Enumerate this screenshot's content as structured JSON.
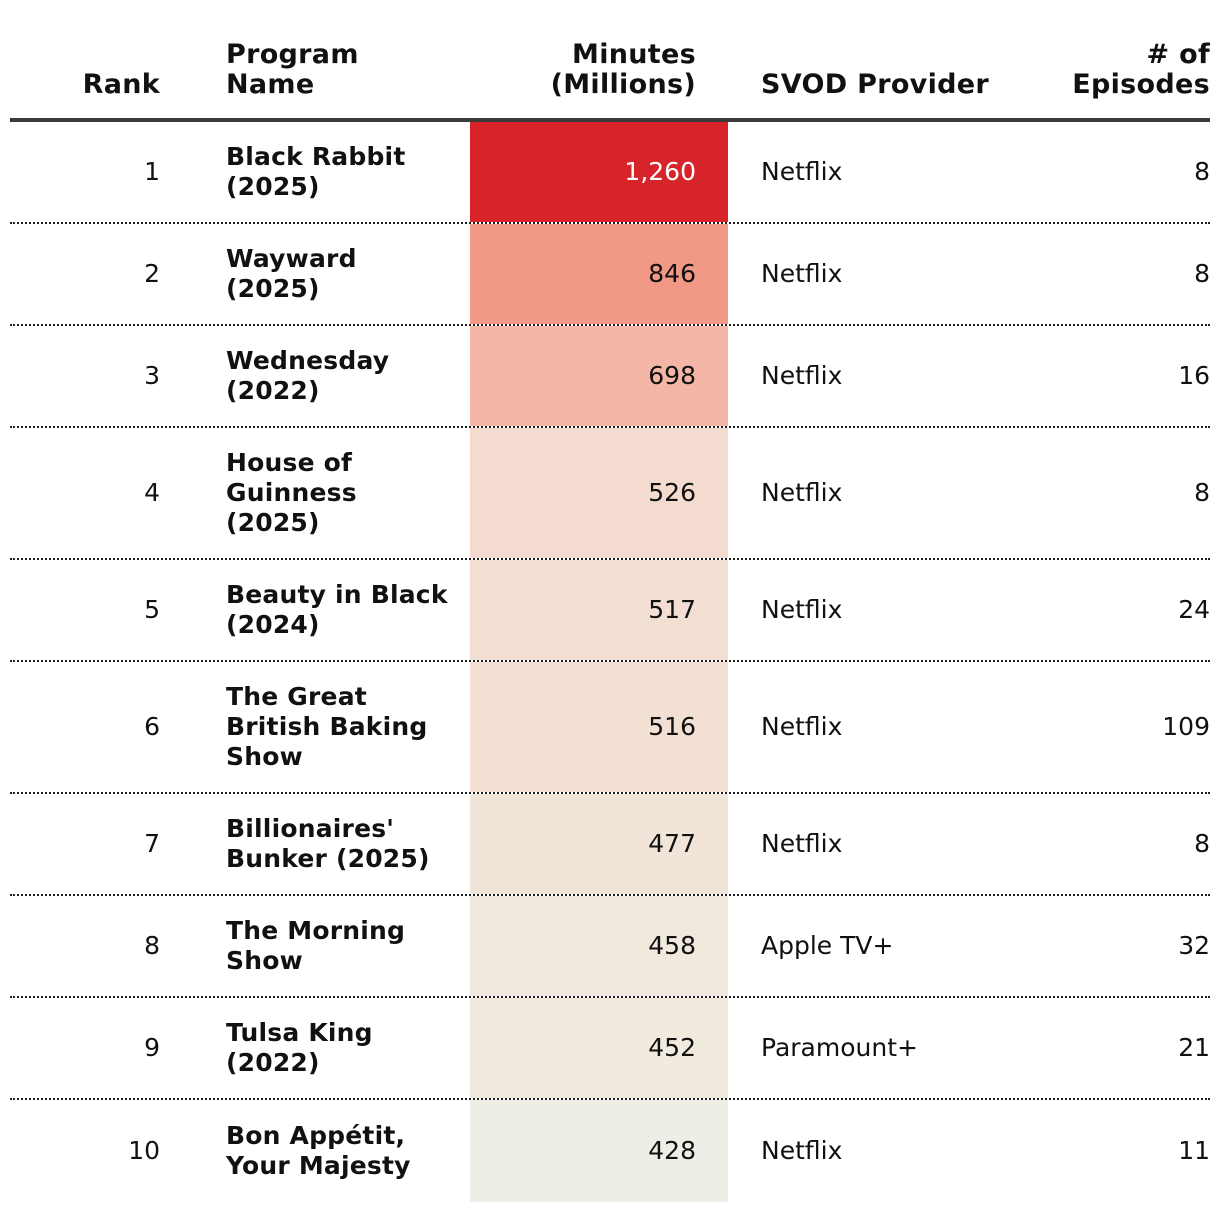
{
  "chart_data": {
    "type": "table",
    "columns": {
      "rank": "Rank",
      "program_name": "Program\nName",
      "minutes": "Minutes\n(Millions)",
      "provider": "SVOD Provider",
      "episodes": "# of\nEpisodes"
    },
    "rows": [
      {
        "rank": "1",
        "program": "Black Rabbit (2025)",
        "minutes": "1,260",
        "minutes_value": 1260,
        "provider": "Netflix",
        "episodes": "8",
        "fill": "#d7242a"
      },
      {
        "rank": "2",
        "program": "Wayward (2025)",
        "minutes": "846",
        "minutes_value": 846,
        "provider": "Netflix",
        "episodes": "8",
        "fill": "#f19886"
      },
      {
        "rank": "3",
        "program": "Wednesday (2022)",
        "minutes": "698",
        "minutes_value": 698,
        "provider": "Netflix",
        "episodes": "16",
        "fill": "#f4b6a6"
      },
      {
        "rank": "4",
        "program": "House of Guinness (2025)",
        "minutes": "526",
        "minutes_value": 526,
        "provider": "Netflix",
        "episodes": "8",
        "fill": "#f3dbd0"
      },
      {
        "rank": "5",
        "program": "Beauty in Black (2024)",
        "minutes": "517",
        "minutes_value": 517,
        "provider": "Netflix",
        "episodes": "24",
        "fill": "#f3ded3"
      },
      {
        "rank": "6",
        "program": "The Great British Baking Show",
        "minutes": "516",
        "minutes_value": 516,
        "provider": "Netflix",
        "episodes": "109",
        "fill": "#f3dfd4"
      },
      {
        "rank": "7",
        "program": "Billionaires' Bunker (2025)",
        "minutes": "477",
        "minutes_value": 477,
        "provider": "Netflix",
        "episodes": "8",
        "fill": "#f1e5da"
      },
      {
        "rank": "8",
        "program": "The Morning Show",
        "minutes": "458",
        "minutes_value": 458,
        "provider": "Apple TV+",
        "episodes": "32",
        "fill": "#f1e8de"
      },
      {
        "rank": "9",
        "program": "Tulsa King (2022)",
        "minutes": "452",
        "minutes_value": 452,
        "provider": "Paramount+",
        "episodes": "21",
        "fill": "#f1eadf"
      },
      {
        "rank": "10",
        "program": "Bon Appétit, Your Majesty",
        "minutes": "428",
        "minutes_value": 428,
        "provider": "Netflix",
        "episodes": "11",
        "fill": "#eeeee6"
      }
    ],
    "highlight_column": "minutes",
    "color_scale": {
      "low": "#eeeee6",
      "high": "#d7242a"
    }
  }
}
